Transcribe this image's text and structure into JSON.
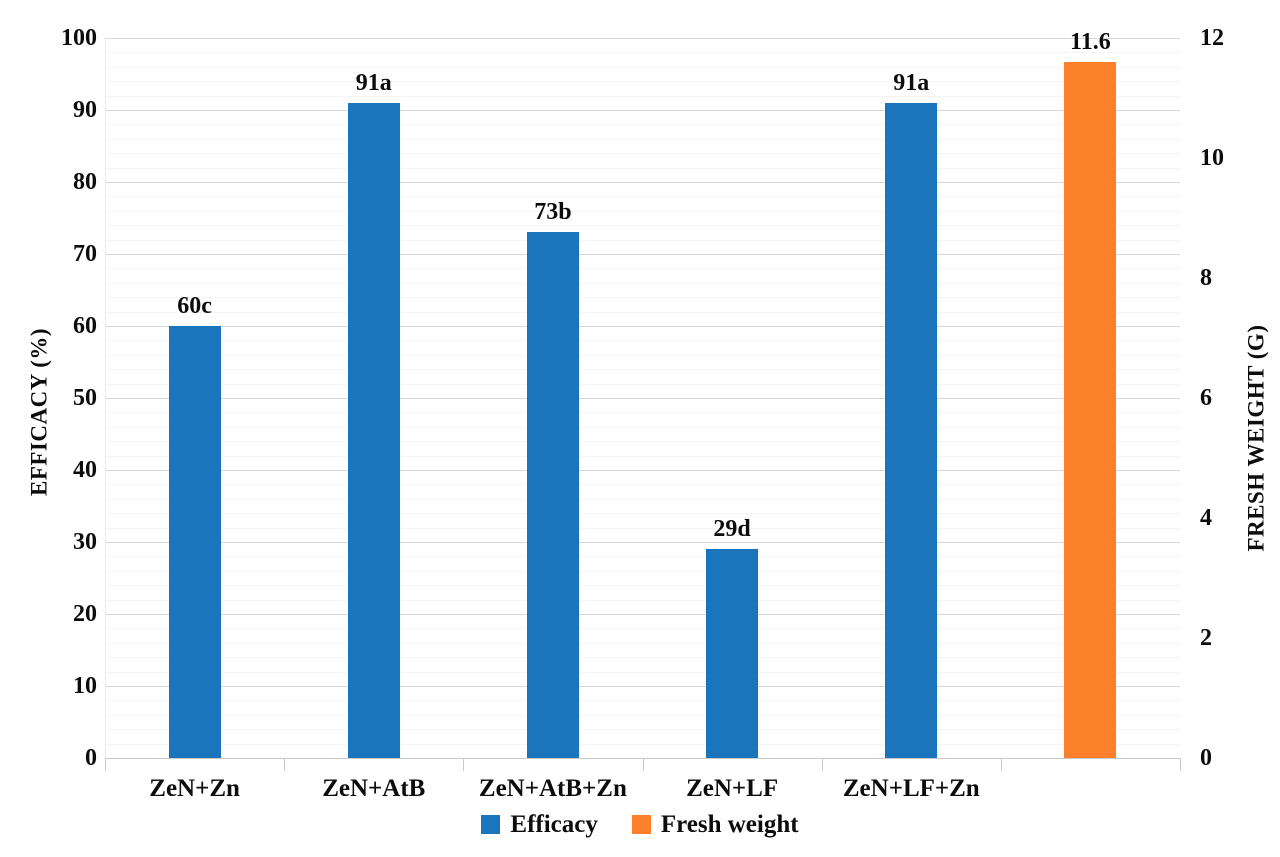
{
  "chart_data": {
    "type": "bar",
    "title": "",
    "categories": [
      "ZeN+Zn",
      "ZeN+AtB",
      "ZeN+AtB+Zn",
      "ZeN+LF",
      "ZeN+LF+Zn",
      ""
    ],
    "series": [
      {
        "name": "Efficacy",
        "axis": "left",
        "color": "#1b75bc",
        "values": [
          60,
          91,
          73,
          29,
          91,
          null
        ],
        "point_labels": [
          "60c",
          "91a",
          "73b",
          "29d",
          "91a",
          null
        ]
      },
      {
        "name": "Fresh weight",
        "axis": "right",
        "color": "#fb8029",
        "values": [
          null,
          null,
          null,
          null,
          null,
          11.6
        ],
        "point_labels": [
          null,
          null,
          null,
          null,
          null,
          "11.6"
        ]
      }
    ],
    "left_axis": {
      "label": "EFFICACY (%)",
      "min": 0,
      "max": 100,
      "major_step": 10,
      "minor_step": 2,
      "tick_labels": [
        "0",
        "10",
        "20",
        "30",
        "40",
        "50",
        "60",
        "70",
        "80",
        "90",
        "100"
      ]
    },
    "right_axis": {
      "label": "FRESH WEIGHT (G)",
      "min": 0,
      "max": 12,
      "major_step": 2,
      "tick_labels": [
        "0",
        "2",
        "4",
        "6",
        "8",
        "10",
        "12"
      ]
    },
    "legend": {
      "position": "bottom",
      "items": [
        {
          "label": "Efficacy",
          "color": "#1b75bc"
        },
        {
          "label": "Fresh weight",
          "color": "#fb8029"
        }
      ]
    },
    "grid": "on",
    "colors": {
      "major_gridline": "#d8d8d8",
      "minor_gridline": "#f4f4f4",
      "axis_line": "#c9c9c9",
      "text": "#0c0c0c",
      "background": "#ffffff"
    }
  }
}
